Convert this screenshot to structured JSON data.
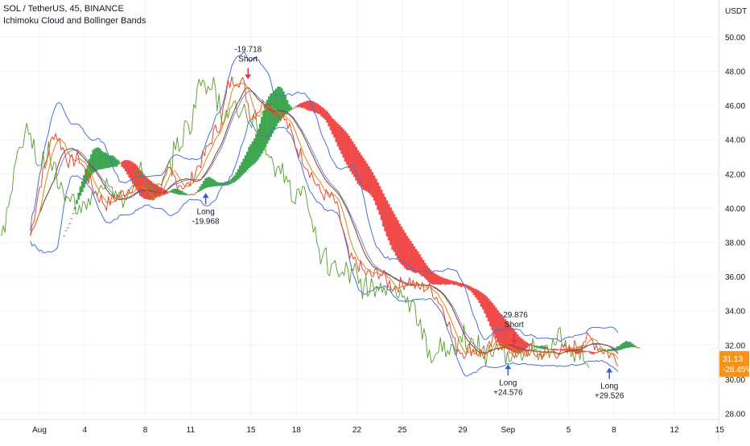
{
  "header": {
    "symbol_line": "SOL / TetherUS, 45, BINANCE",
    "indicator": "Ichimoku Cloud and Bollinger Bands"
  },
  "chart_data": {
    "type": "line",
    "currency": "USDT",
    "ylim": [
      28,
      50
    ],
    "y_ticks": [
      "28.00",
      "30.00",
      "32.00",
      "34.00",
      "36.00",
      "38.00",
      "40.00",
      "42.00",
      "44.00",
      "46.00",
      "48.00",
      "50.00"
    ],
    "x_ticks": [
      "Aug",
      "4",
      "8",
      "11",
      "15",
      "18",
      "22",
      "25",
      "29",
      "Sep",
      "5",
      "8",
      "12",
      "15"
    ],
    "xlim_days": [
      -0.6,
      45.5
    ],
    "x_tick_days": [
      0,
      3,
      7,
      10,
      14,
      17,
      21,
      24,
      28,
      31,
      35,
      38,
      42,
      45
    ],
    "last_price": "31.13",
    "last_change": "-28.45%",
    "price_series": [
      [
        -0.6,
        38.4
      ],
      [
        0.0,
        41.2
      ],
      [
        0.6,
        43.3
      ],
      [
        1.0,
        44.5
      ],
      [
        1.5,
        43.6
      ],
      [
        2.0,
        42.6
      ],
      [
        2.6,
        43.0
      ],
      [
        3.2,
        41.8
      ],
      [
        3.8,
        40.8
      ],
      [
        4.4,
        40.2
      ],
      [
        5.0,
        40.6
      ],
      [
        5.6,
        40.9
      ],
      [
        6.2,
        41.4
      ],
      [
        6.8,
        41.0
      ],
      [
        7.4,
        40.5
      ],
      [
        8.0,
        41.2
      ],
      [
        8.6,
        42.1
      ],
      [
        9.2,
        41.5
      ],
      [
        9.8,
        41.2
      ],
      [
        10.4,
        42.3
      ],
      [
        11.0,
        43.2
      ],
      [
        11.5,
        44.3
      ],
      [
        12.0,
        45.0
      ],
      [
        12.5,
        47.2
      ],
      [
        13.0,
        47.6
      ],
      [
        13.5,
        47.3
      ],
      [
        14.0,
        45.3
      ],
      [
        14.5,
        45.8
      ],
      [
        15.0,
        46.3
      ],
      [
        15.5,
        45.7
      ],
      [
        16.0,
        45.5
      ],
      [
        16.5,
        44.7
      ],
      [
        17.0,
        43.6
      ],
      [
        17.5,
        42.8
      ],
      [
        18.0,
        42.0
      ],
      [
        18.5,
        41.0
      ],
      [
        19.0,
        40.7
      ],
      [
        19.5,
        40.5
      ],
      [
        20.0,
        39.0
      ],
      [
        20.5,
        37.0
      ],
      [
        21.0,
        36.8
      ],
      [
        21.5,
        36.2
      ],
      [
        22.0,
        36.0
      ],
      [
        22.5,
        36.3
      ],
      [
        23.0,
        35.7
      ],
      [
        23.5,
        35.4
      ],
      [
        24.0,
        35.6
      ],
      [
        24.5,
        35.8
      ],
      [
        25.0,
        35.3
      ],
      [
        25.5,
        35.4
      ],
      [
        26.0,
        35.2
      ],
      [
        26.5,
        34.5
      ],
      [
        27.0,
        33.5
      ],
      [
        27.5,
        32.0
      ],
      [
        28.0,
        31.6
      ],
      [
        28.5,
        31.8
      ],
      [
        29.0,
        31.6
      ],
      [
        29.5,
        31.4
      ],
      [
        30.0,
        32.2
      ],
      [
        30.5,
        32.1
      ],
      [
        31.0,
        31.8
      ],
      [
        31.5,
        31.5
      ],
      [
        32.0,
        31.6
      ],
      [
        32.5,
        31.7
      ],
      [
        33.0,
        31.4
      ],
      [
        33.5,
        31.6
      ],
      [
        34.0,
        31.5
      ],
      [
        34.5,
        31.7
      ],
      [
        35.0,
        31.6
      ],
      [
        35.5,
        32.0
      ],
      [
        36.0,
        32.3
      ],
      [
        36.5,
        32.3
      ],
      [
        37.0,
        31.9
      ],
      [
        37.5,
        31.6
      ],
      [
        38.0,
        31.3
      ],
      [
        38.3,
        31.2
      ]
    ],
    "signals": [
      {
        "label": "Long",
        "value": "-19.968",
        "x": 11.0,
        "price": 40.5,
        "dir": "long"
      },
      {
        "label": "Short",
        "value": "-19.718",
        "x": 13.8,
        "price": 47.9,
        "dir": "short"
      },
      {
        "label": "Short",
        "value": "-29.876",
        "x": 31.4,
        "price": 32.4,
        "dir": "short"
      },
      {
        "label": "Long",
        "value": "+24.576",
        "x": 31.0,
        "price": 30.5,
        "dir": "long"
      },
      {
        "label": "Long",
        "value": "+29.526",
        "x": 37.7,
        "price": 30.3,
        "dir": "long"
      }
    ],
    "colors": {
      "price": "#e84a2f",
      "tenkan": "#d48a1a",
      "kijun": "#8a3b1a",
      "chikou": "#5a9a2a",
      "bollinger": "#4a6fd8",
      "cloud_bull": "#2f9e44",
      "cloud_bear": "#f03c3c",
      "signal_long": "#2a62d6",
      "signal_short": "#e8344a",
      "last_price_bg": "#f7931a"
    },
    "grid": true
  }
}
